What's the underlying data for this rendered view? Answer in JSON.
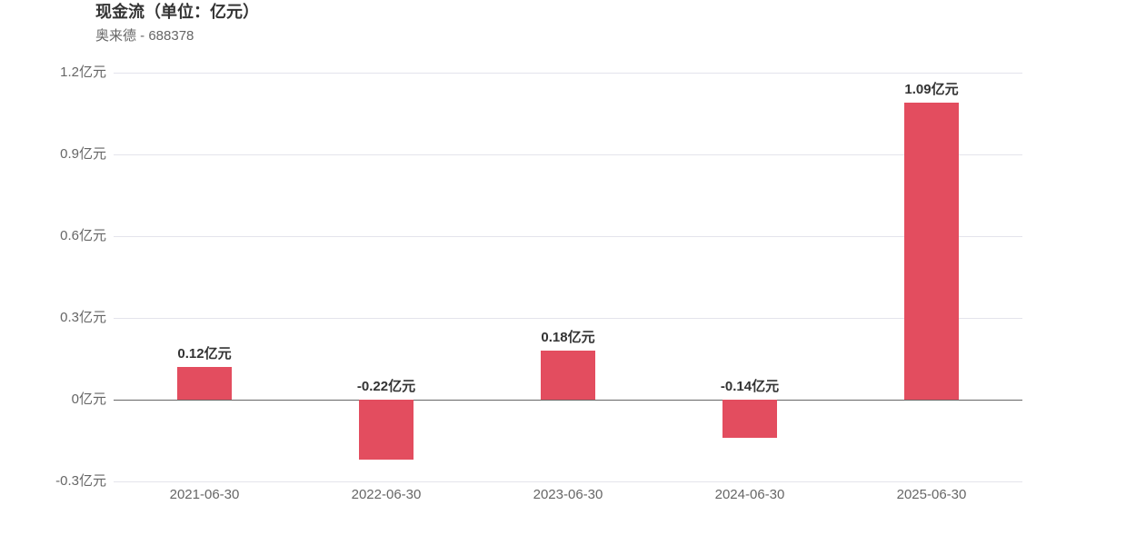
{
  "chart_data": {
    "type": "bar",
    "title": "现金流（单位：亿元）",
    "subtitle": "奥来德 - 688378",
    "categories": [
      "2021-06-30",
      "2022-06-30",
      "2023-06-30",
      "2024-06-30",
      "2025-06-30"
    ],
    "values": [
      0.12,
      -0.22,
      0.18,
      -0.14,
      1.09
    ],
    "value_labels": [
      "0.12亿元",
      "-0.22亿元",
      "0.18亿元",
      "-0.14亿元",
      "1.09亿元"
    ],
    "color": "#e34d5f",
    "ylim": [
      -0.3,
      1.2
    ],
    "yticks": [
      {
        "value": -0.3,
        "label": "-0.3亿元"
      },
      {
        "value": 0,
        "label": "0亿元"
      },
      {
        "value": 0.3,
        "label": "0.3亿元"
      },
      {
        "value": 0.6,
        "label": "0.6亿元"
      },
      {
        "value": 0.9,
        "label": "0.9亿元"
      },
      {
        "value": 1.2,
        "label": "1.2亿元"
      }
    ],
    "grid": true
  }
}
